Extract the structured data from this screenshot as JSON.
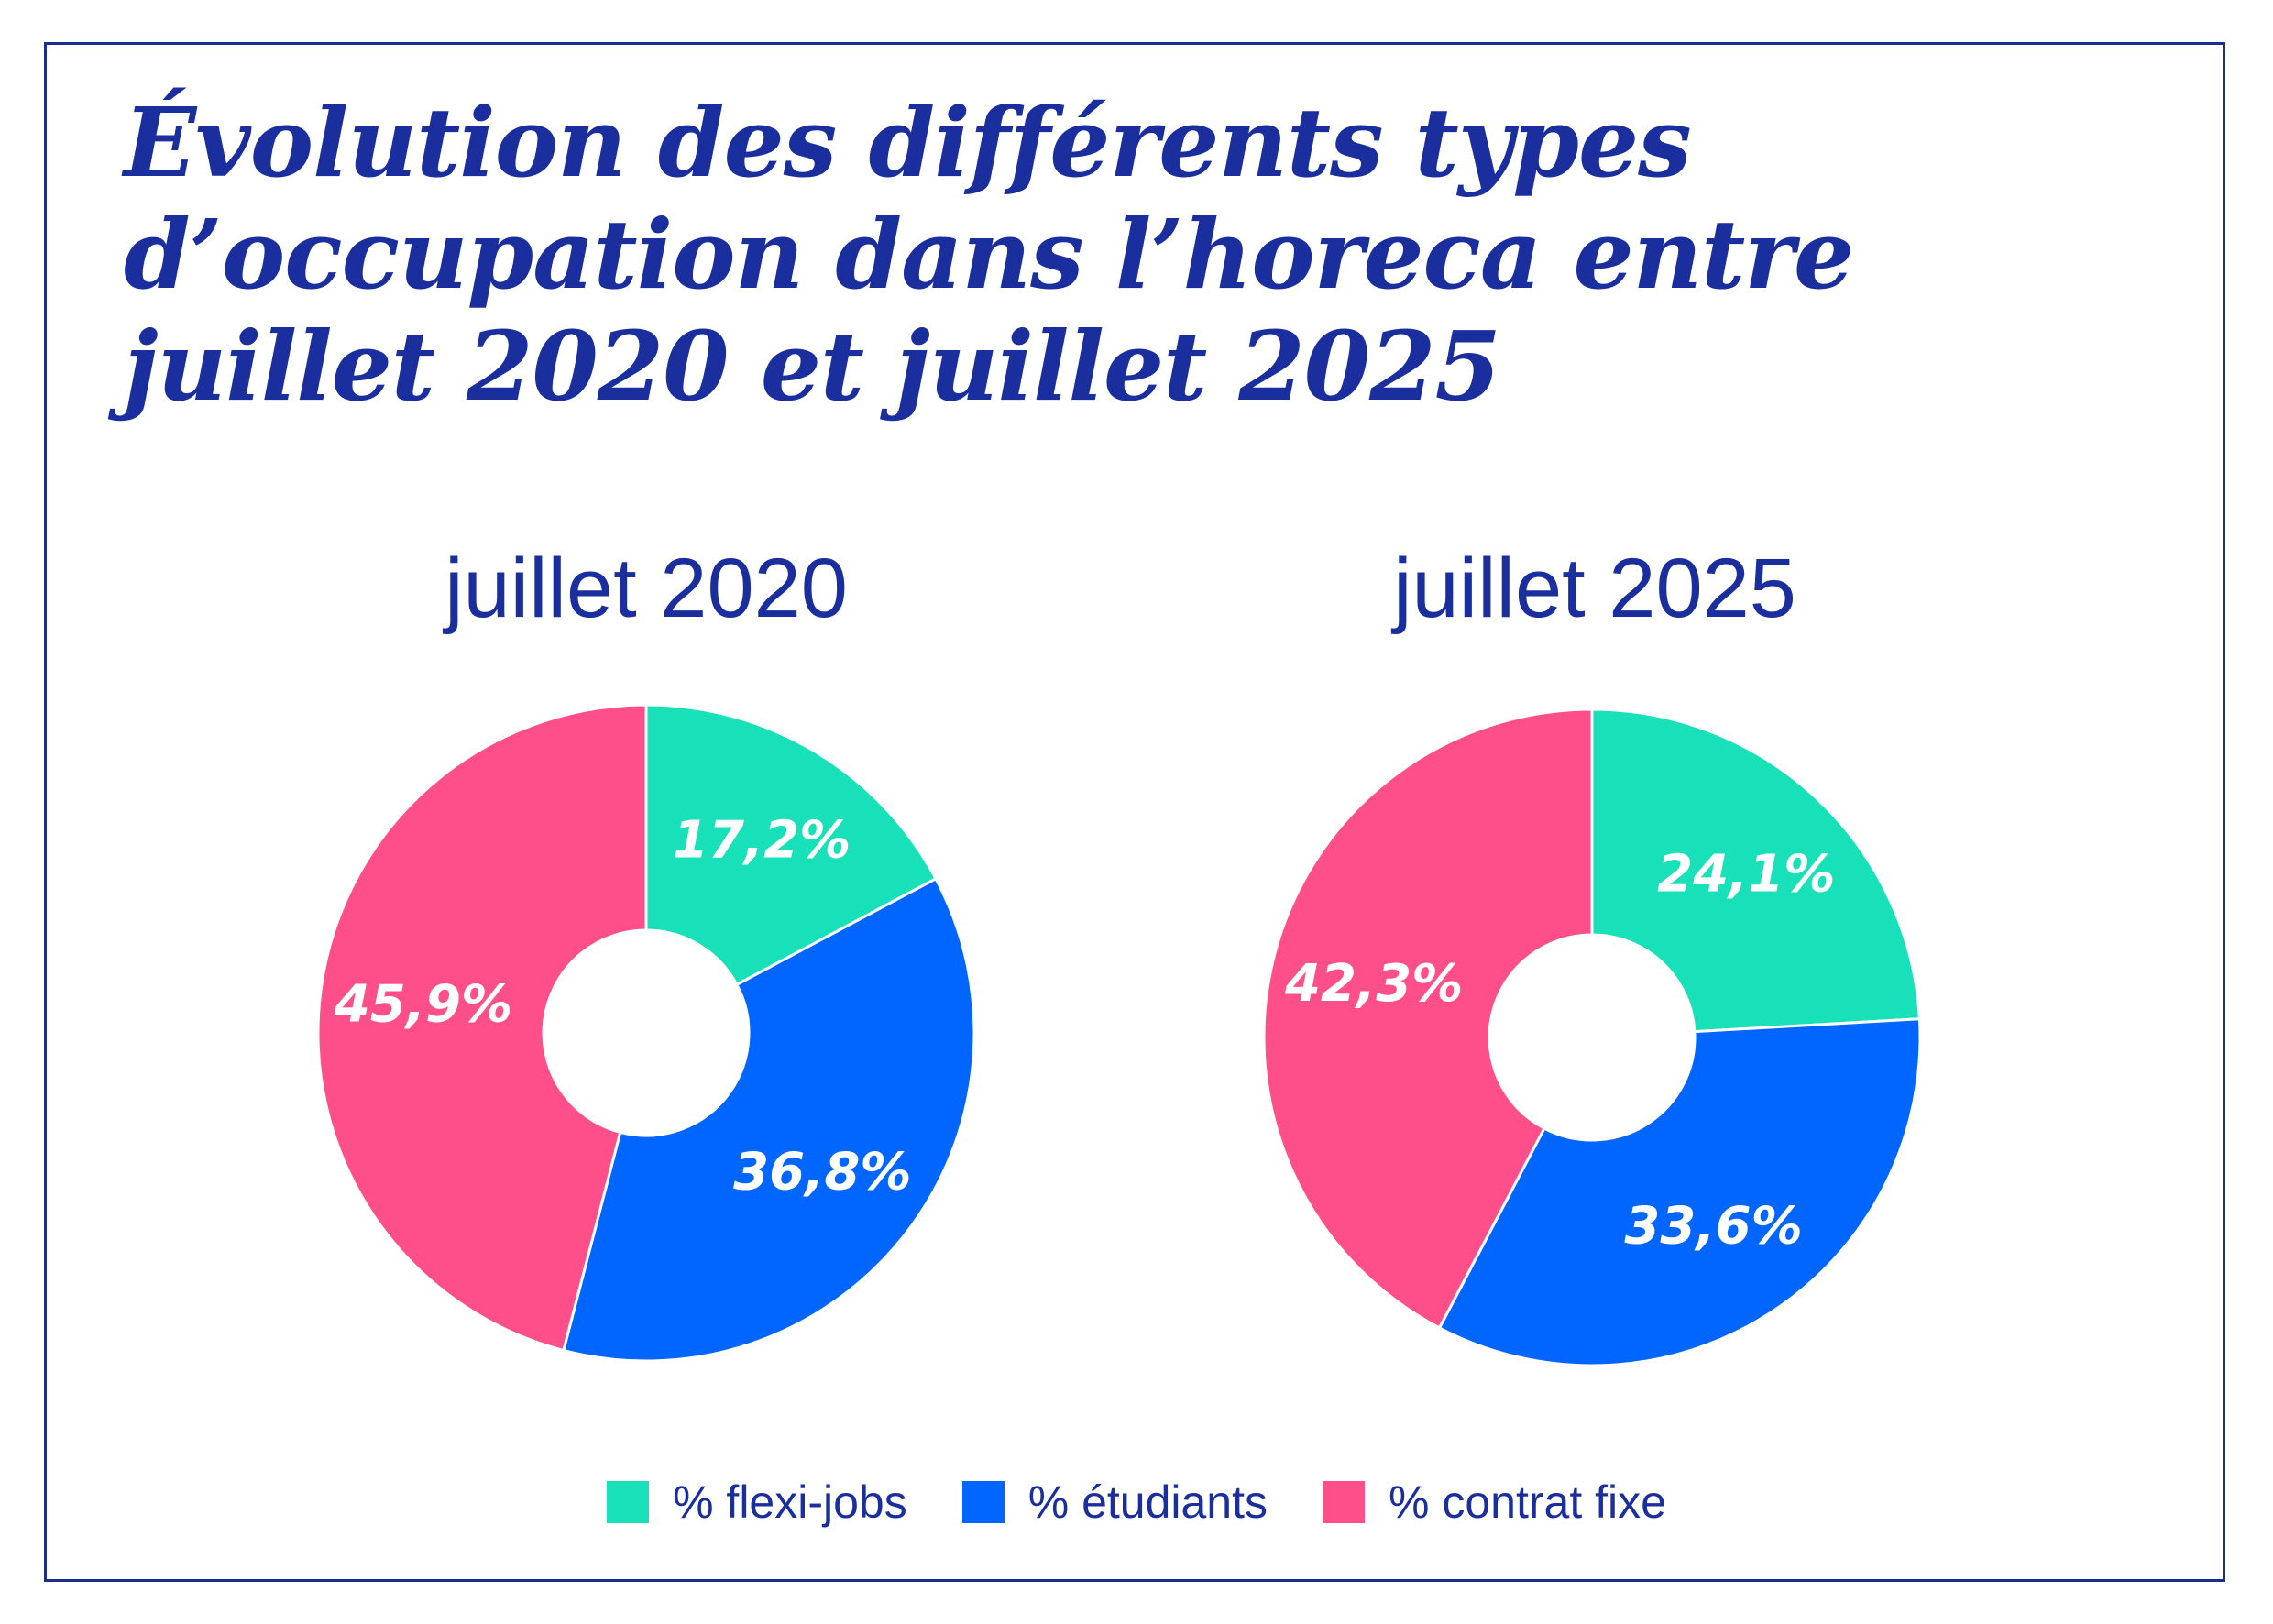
{
  "title_lines": [
    "Évolution des différents types",
    "d’occupation dans l’horeca entre",
    "juillet 2020 et juillet 2025"
  ],
  "colors": {
    "flexi_jobs": "#18e0b8",
    "etudiants": "#0066ff",
    "contrat_fixe": "#ff4f8b",
    "text": "#1a2e9e"
  },
  "legend": {
    "flexi_jobs": "% flexi-jobs",
    "etudiants": "% étudiants",
    "contrat_fixe": "% contrat fixe"
  },
  "chart_data": [
    {
      "type": "pie",
      "title": "juillet 2020",
      "categories": [
        "% flexi-jobs",
        "% étudiants",
        "% contrat fixe"
      ],
      "values": [
        17.2,
        36.8,
        45.9
      ],
      "labels": [
        "17,2%",
        "36,8%",
        "45,9%"
      ]
    },
    {
      "type": "pie",
      "title": "juillet 2025",
      "categories": [
        "% flexi-jobs",
        "% étudiants",
        "% contrat fixe"
      ],
      "values": [
        24.1,
        33.6,
        42.3
      ],
      "labels": [
        "24,1%",
        "33,6%",
        "42,3%"
      ]
    }
  ]
}
